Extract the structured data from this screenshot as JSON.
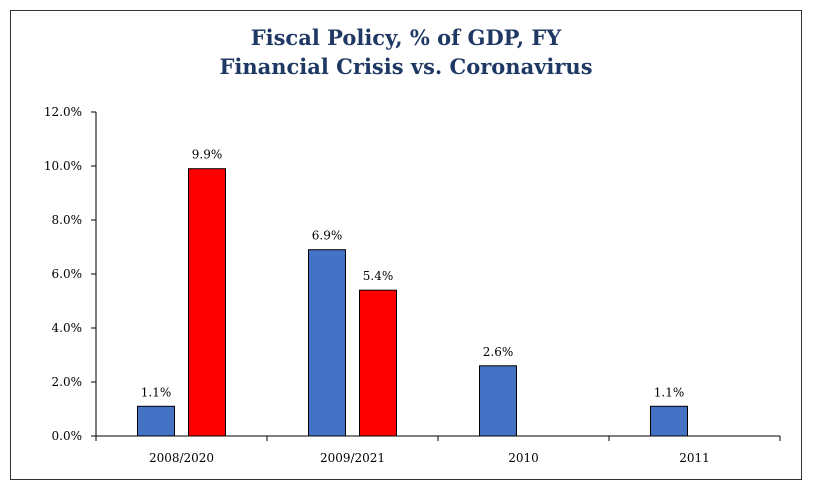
{
  "chart_data": {
    "type": "bar",
    "title": "Fiscal Policy, % of GDP, FY",
    "subtitle": "Financial Crisis vs. Coronavirus",
    "xlabel": "",
    "ylabel": "",
    "categories": [
      "2008/2020",
      "2009/2021",
      "2010",
      "2011"
    ],
    "series": [
      {
        "color": "#4472c4",
        "values": [
          1.1,
          6.9,
          2.6,
          1.1
        ]
      },
      {
        "color": "#ff0000",
        "values": [
          9.9,
          5.4,
          null,
          null
        ]
      }
    ],
    "value_labels": [
      [
        "1.1%",
        "6.9%",
        "2.6%",
        "1.1%"
      ],
      [
        "9.9%",
        "5.4%",
        null,
        null
      ]
    ],
    "ylim": [
      0,
      12
    ],
    "yticks": [
      0,
      2,
      4,
      6,
      8,
      10,
      12
    ],
    "ytick_labels": [
      "0.0%",
      "2.0%",
      "4.0%",
      "6.0%",
      "8.0%",
      "10.0%",
      "12.0%"
    ],
    "grid": false,
    "legend": "none"
  }
}
